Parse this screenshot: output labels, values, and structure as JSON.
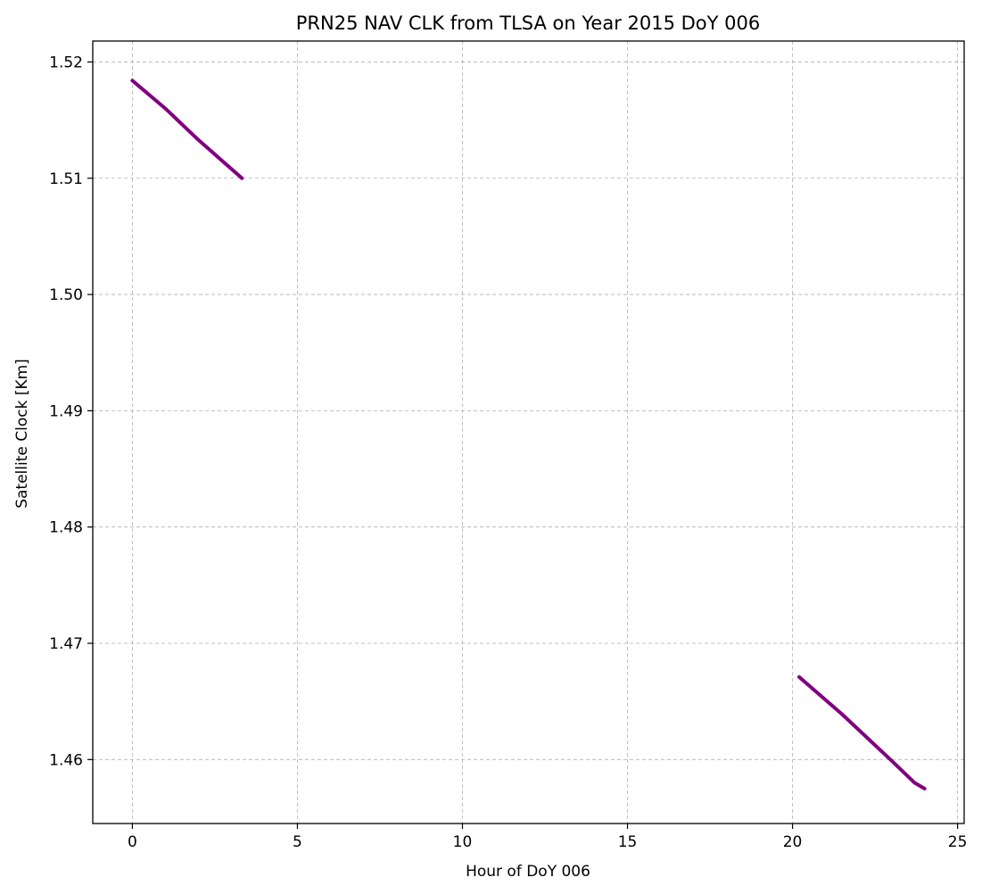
{
  "chart_data": {
    "type": "line",
    "title": "PRN25 NAV CLK from TLSA on Year 2015 DoY 006",
    "xlabel": "Hour of DoY 006",
    "ylabel": "Satellite Clock [Km]",
    "xlim": [
      -1.2,
      25.2
    ],
    "ylim": [
      1.4545,
      1.5218
    ],
    "xticks": [
      0,
      5,
      10,
      15,
      20,
      25
    ],
    "xtick_labels": [
      "0",
      "5",
      "10",
      "15",
      "20",
      "25"
    ],
    "yticks": [
      1.46,
      1.47,
      1.48,
      1.49,
      1.5,
      1.51,
      1.52
    ],
    "ytick_labels": [
      "1.46",
      "1.47",
      "1.48",
      "1.49",
      "1.50",
      "1.51",
      "1.52"
    ],
    "grid": true,
    "series": [
      {
        "color": "#800080",
        "segments": [
          {
            "x": [
              0.0,
              1.0,
              2.0,
              3.32
            ],
            "y": [
              1.5184,
              1.516,
              1.5133,
              1.51
            ]
          },
          {
            "x": [
              20.2,
              21.5,
              23.0,
              23.7,
              24.0
            ],
            "y": [
              1.4671,
              1.4639,
              1.4599,
              1.458,
              1.4575
            ]
          }
        ]
      }
    ]
  }
}
